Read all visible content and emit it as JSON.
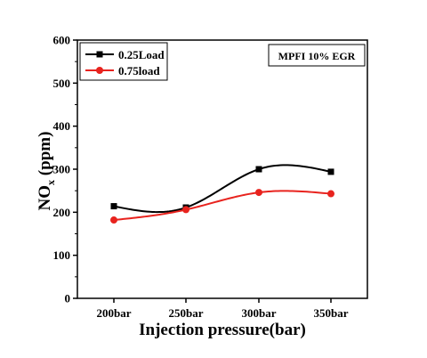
{
  "chart_data": {
    "type": "line",
    "categories": [
      "200bar",
      "250bar",
      "300bar",
      "350bar"
    ],
    "xlabel": "Injection pressure(bar)",
    "ylabel": {
      "main": "NO",
      "sub": "x",
      "unit": " (ppm)"
    },
    "ylim": [
      0,
      600
    ],
    "yticks": [
      0,
      100,
      200,
      300,
      400,
      500,
      600
    ],
    "legend_position": "top-left",
    "annotation": "MPFI 10% EGR",
    "series": [
      {
        "name": "0.25Load",
        "marker": "square",
        "color": "#000000",
        "values": [
          214,
          211,
          300,
          294
        ]
      },
      {
        "name": "0.75load",
        "marker": "circle",
        "color": "#e8231e",
        "values": [
          182,
          206,
          246,
          243
        ]
      }
    ]
  }
}
